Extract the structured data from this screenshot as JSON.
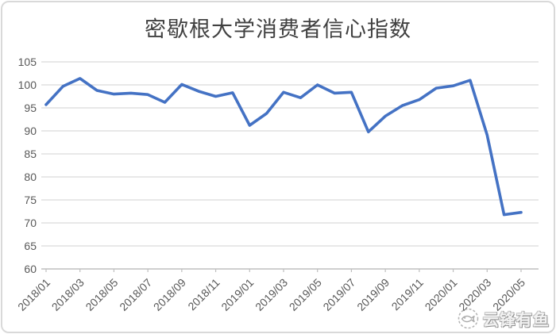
{
  "title": "密歇根大学消费者信心指数",
  "watermark": {
    "brand": "云锋有鱼",
    "logo_icon": "fish-circle-logo"
  },
  "colors": {
    "line": "#4472C4",
    "gridline": "#D9D9D9",
    "axis_line": "#BFBFBF",
    "tick_label": "#595959",
    "title_text": "#404040",
    "frame_border": "#D9D9D9"
  },
  "chart_data": {
    "type": "line",
    "title": "密歇根大学消费者信心指数",
    "xlabel": "",
    "ylabel": "",
    "ylim": [
      60,
      105
    ],
    "y_ticks": [
      60,
      65,
      70,
      75,
      80,
      85,
      90,
      95,
      100,
      105
    ],
    "grid": true,
    "legend": false,
    "x": [
      "2018/01",
      "2018/02",
      "2018/03",
      "2018/04",
      "2018/05",
      "2018/06",
      "2018/07",
      "2018/08",
      "2018/09",
      "2018/10",
      "2018/11",
      "2018/12",
      "2019/01",
      "2019/02",
      "2019/03",
      "2019/04",
      "2019/05",
      "2019/06",
      "2019/07",
      "2019/08",
      "2019/09",
      "2019/10",
      "2019/11",
      "2019/12",
      "2020/01",
      "2020/02",
      "2020/03",
      "2020/04",
      "2020/05"
    ],
    "values": [
      95.7,
      99.7,
      101.4,
      98.8,
      98.0,
      98.2,
      97.9,
      96.2,
      100.1,
      98.6,
      97.5,
      98.3,
      91.2,
      93.8,
      98.4,
      97.2,
      100.0,
      98.2,
      98.4,
      89.8,
      93.2,
      95.5,
      96.8,
      99.3,
      99.8,
      101.0,
      89.1,
      71.8,
      72.3
    ],
    "x_tick_labels": [
      "2018/01",
      "2018/03",
      "2018/05",
      "2018/07",
      "2018/09",
      "2018/11",
      "2019/01",
      "2019/03",
      "2019/05",
      "2019/07",
      "2019/09",
      "2019/11",
      "2020/01",
      "2020/03",
      "2020/05"
    ],
    "x_tick_every": 2
  }
}
